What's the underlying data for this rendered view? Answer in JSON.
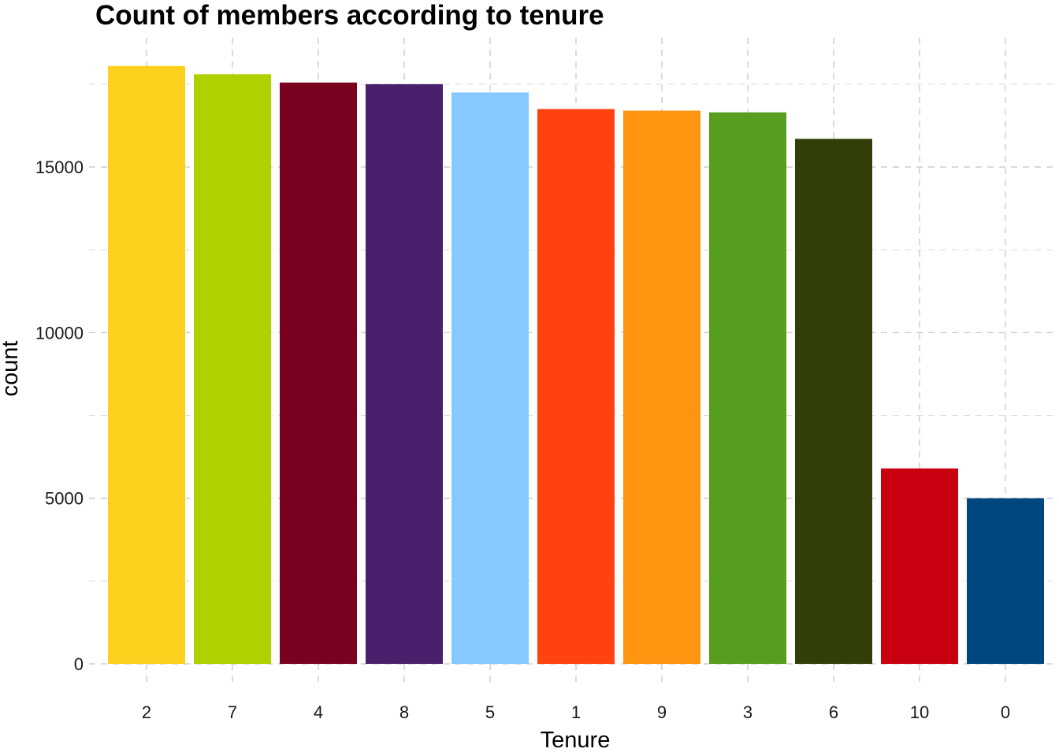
{
  "chart_data": {
    "type": "bar",
    "title": "Count of members according to tenure",
    "xlabel": "Tenure",
    "ylabel": "count",
    "categories": [
      "2",
      "7",
      "4",
      "8",
      "5",
      "1",
      "9",
      "3",
      "6",
      "10",
      "0"
    ],
    "values": [
      18050,
      17800,
      17550,
      17500,
      17250,
      16750,
      16700,
      16650,
      15850,
      5900,
      5000
    ],
    "colors": [
      "#FDD21F",
      "#AFD100",
      "#7A0020",
      "#4A1F6B",
      "#85C9FF",
      "#FF4210",
      "#FF9410",
      "#579E1E",
      "#323E07",
      "#C8000F",
      "#00467F"
    ],
    "ylim": [
      0,
      18900
    ],
    "yticks": [
      0,
      5000,
      10000,
      15000
    ],
    "ytick_labels": [
      "0",
      "5000",
      "10000",
      "15000"
    ],
    "grid": true,
    "grid_style": "dashed",
    "legend": "none"
  }
}
